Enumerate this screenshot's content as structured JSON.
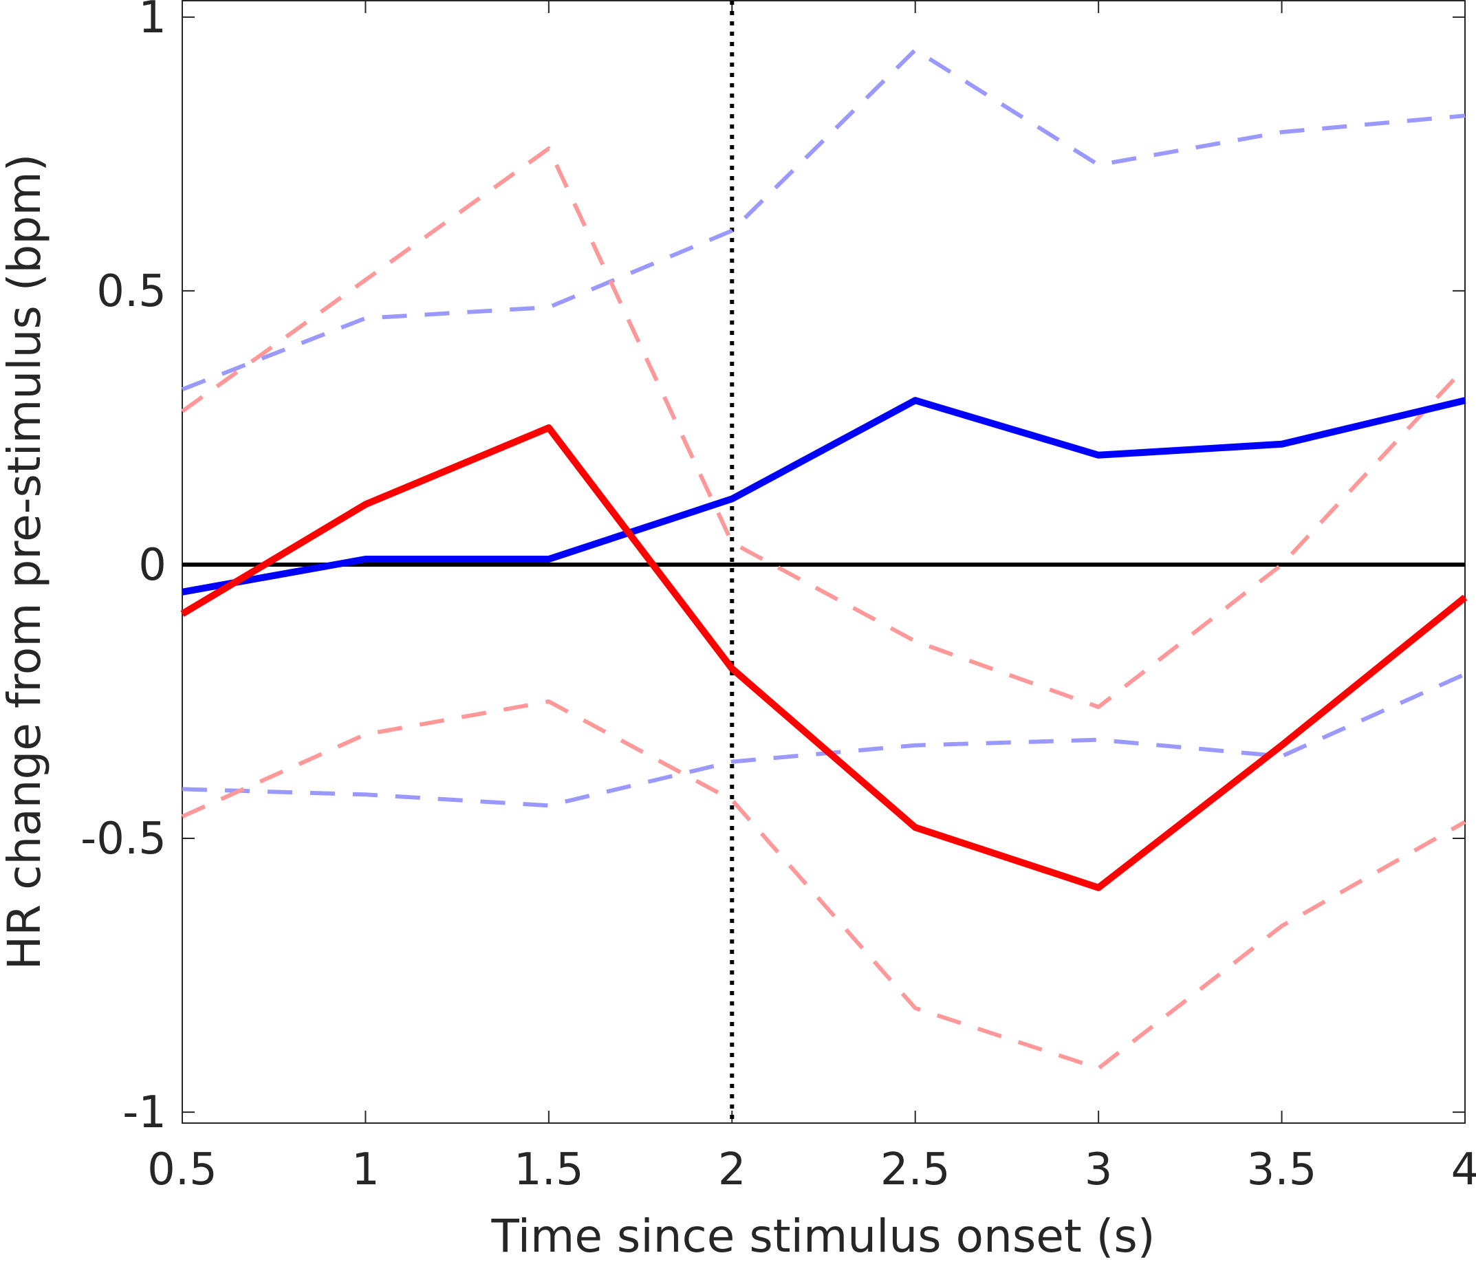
{
  "chart_data": {
    "type": "line",
    "title": "",
    "xlabel": "Time since stimulus onset (s)",
    "ylabel": "HR change from pre-stimulus (bpm)",
    "xlim": [
      0.5,
      4
    ],
    "ylim": [
      -1.02,
      1.03
    ],
    "x_ticks": [
      0.5,
      1,
      1.5,
      2,
      2.5,
      3,
      3.5,
      4
    ],
    "x_tick_labels": [
      "0.5",
      "1",
      "1.5",
      "2",
      "2.5",
      "3",
      "3.5",
      "4"
    ],
    "y_ticks": [
      -1,
      -0.5,
      0,
      0.5,
      1
    ],
    "y_tick_labels": [
      "-1",
      "-0.5",
      "0",
      "0.5",
      "1"
    ],
    "grid": false,
    "reference_lines": {
      "zero_line_y": 0,
      "zero_line_color": "#000000",
      "stimulus_line_x": 2,
      "stimulus_line_color": "#000000",
      "stimulus_line_style": "dotted"
    },
    "x": [
      0.5,
      1,
      1.5,
      2,
      2.5,
      3,
      3.5,
      4
    ],
    "series": [
      {
        "role": "blue-upper-bound",
        "color": "#9999ff",
        "style": "dashed",
        "values": [
          0.32,
          0.45,
          0.47,
          0.61,
          0.94,
          0.73,
          0.79,
          0.82
        ]
      },
      {
        "role": "blue-lower-bound",
        "color": "#9999ff",
        "style": "dashed",
        "values": [
          -0.41,
          -0.42,
          -0.44,
          -0.36,
          -0.33,
          -0.32,
          -0.35,
          -0.2
        ]
      },
      {
        "role": "red-upper-bound",
        "color": "#ff9999",
        "style": "dashed",
        "values": [
          0.28,
          0.52,
          0.76,
          0.04,
          -0.14,
          -0.26,
          0.0,
          0.36
        ]
      },
      {
        "role": "red-lower-bound",
        "color": "#ff9999",
        "style": "dashed",
        "values": [
          -0.46,
          -0.31,
          -0.25,
          -0.43,
          -0.81,
          -0.92,
          -0.66,
          -0.47
        ]
      },
      {
        "role": "blue-mean",
        "color": "#0000ff",
        "style": "solid",
        "values": [
          -0.05,
          0.01,
          0.01,
          0.12,
          0.3,
          0.2,
          0.22,
          0.3
        ]
      },
      {
        "role": "red-mean",
        "color": "#ff0000",
        "style": "solid",
        "values": [
          -0.09,
          0.11,
          0.25,
          -0.19,
          -0.48,
          -0.59,
          -0.33,
          -0.06
        ]
      }
    ]
  }
}
